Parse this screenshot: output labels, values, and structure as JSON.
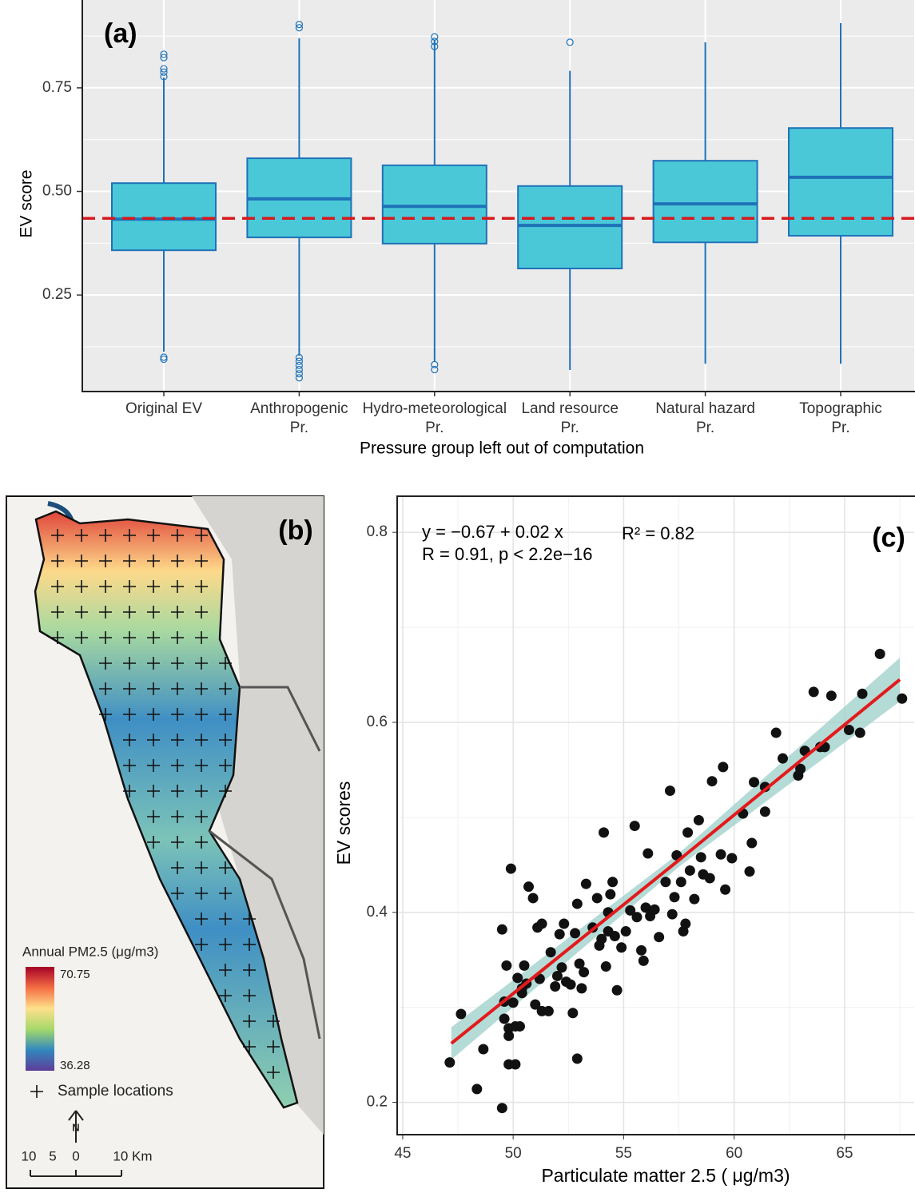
{
  "chart_data": [
    {
      "type": "box",
      "panel_label": "(a)",
      "x_label": "Pressure group left out of computation",
      "y_label": "EV score",
      "categories": [
        "Original EV",
        "Anthropogenic\nPr.",
        "Hydro-meteorological\nPr.",
        "Land resource\nPr.",
        "Natural hazard\nPr.",
        "Topographic\nPr."
      ],
      "lower": [
        0.113,
        0.103,
        0.09,
        0.069,
        0.084,
        0.084
      ],
      "q1": [
        0.358,
        0.389,
        0.374,
        0.314,
        0.377,
        0.393
      ],
      "median": [
        0.433,
        0.482,
        0.464,
        0.418,
        0.47,
        0.534
      ],
      "q3": [
        0.52,
        0.58,
        0.563,
        0.513,
        0.574,
        0.653
      ],
      "upper": [
        0.775,
        0.87,
        0.866,
        0.791,
        0.86,
        0.906
      ],
      "outliers": [
        [
          0.831,
          0.823,
          0.796,
          0.788,
          0.777,
          0.1,
          0.095
        ],
        [
          0.903,
          0.895,
          0.099,
          0.09,
          0.08,
          0.07,
          0.06,
          0.05
        ],
        [
          0.873,
          0.862,
          0.85,
          0.082,
          0.07
        ],
        [
          0.86
        ],
        [],
        []
      ],
      "color": "#4ac8d8",
      "edge_color": "#1f72b8",
      "hline": 0.435,
      "hline_color": "#d7191c",
      "ylim": [
        0.017,
        0.962
      ],
      "yticks": [
        0.25,
        {
          "value": 0.5,
          "label": "0.50"
        },
        0.75
      ],
      "minor_yticks": [
        0.125,
        0.375,
        0.625,
        0.875
      ],
      "grid": true
    },
    {
      "type": "map",
      "panel_label": "(b)",
      "legend_title": "Annual PM2.5 (μg/m3)",
      "colorbar_range": [
        36.28,
        70.75
      ],
      "colorbar_ticks": [
        70.75,
        36.28
      ],
      "marker_label": "Sample locations",
      "north_label": "N",
      "scale_labels": [
        "10",
        "5",
        "0",
        "10 Km"
      ]
    },
    {
      "type": "scatter",
      "panel_label": "(c)",
      "x_label": "Particulate matter 2.5 ( μg/m3)",
      "y_label": "EV scores",
      "equation": "y = −0.67 + 0.02 x",
      "r_squared": "R² = 0.82",
      "correlation": "R = 0.91, p < 2.2e−16",
      "x": [
        47.13,
        47.64,
        48.36,
        48.65,
        49.5,
        49.5,
        49.6,
        49.6,
        49.7,
        49.8,
        49.8,
        49.8,
        49.9,
        50.0,
        50.1,
        50.1,
        50.2,
        50.3,
        50.4,
        50.4,
        50.5,
        50.6,
        50.7,
        50.9,
        51.0,
        51.1,
        51.2,
        51.3,
        51.3,
        51.6,
        51.7,
        51.9,
        52.0,
        52.1,
        52.2,
        52.3,
        52.4,
        52.6,
        52.7,
        52.8,
        52.9,
        52.9,
        53.0,
        53.1,
        53.2,
        53.3,
        53.6,
        53.8,
        53.9,
        54.0,
        54.1,
        54.2,
        54.3,
        54.3,
        54.4,
        54.5,
        54.6,
        54.7,
        54.9,
        55.1,
        55.3,
        55.5,
        55.6,
        55.8,
        55.9,
        56.0,
        56.1,
        56.2,
        56.4,
        56.6,
        56.9,
        57.1,
        57.2,
        57.3,
        57.4,
        57.6,
        57.7,
        57.8,
        57.9,
        58.0,
        58.2,
        58.4,
        58.5,
        58.6,
        58.9,
        59.0,
        59.4,
        59.5,
        59.6,
        59.9,
        60.4,
        60.7,
        60.8,
        60.9,
        61.4,
        61.4,
        61.9,
        62.2,
        62.9,
        63.0,
        63.2,
        63.6,
        63.9,
        64.1,
        64.4,
        65.2,
        65.7,
        65.8,
        66.6,
        67.6
      ],
      "y": [
        0.242,
        0.293,
        0.214,
        0.256,
        0.194,
        0.382,
        0.306,
        0.288,
        0.344,
        0.27,
        0.24,
        0.278,
        0.446,
        0.305,
        0.28,
        0.24,
        0.331,
        0.28,
        0.32,
        0.315,
        0.344,
        0.325,
        0.427,
        0.415,
        0.303,
        0.384,
        0.33,
        0.296,
        0.388,
        0.296,
        0.358,
        0.322,
        0.333,
        0.377,
        0.342,
        0.388,
        0.327,
        0.324,
        0.294,
        0.378,
        0.246,
        0.409,
        0.346,
        0.32,
        0.337,
        0.43,
        0.384,
        0.415,
        0.365,
        0.372,
        0.484,
        0.343,
        0.4,
        0.38,
        0.419,
        0.432,
        0.375,
        0.318,
        0.363,
        0.38,
        0.402,
        0.491,
        0.395,
        0.36,
        0.349,
        0.405,
        0.462,
        0.396,
        0.403,
        0.374,
        0.432,
        0.528,
        0.398,
        0.416,
        0.46,
        0.432,
        0.38,
        0.388,
        0.484,
        0.444,
        0.414,
        0.497,
        0.458,
        0.44,
        0.436,
        0.538,
        0.461,
        0.553,
        0.424,
        0.457,
        0.504,
        0.443,
        0.473,
        0.537,
        0.532,
        0.506,
        0.589,
        0.562,
        0.544,
        0.551,
        0.57,
        0.632,
        0.574,
        0.574,
        0.628,
        0.592,
        0.589,
        0.63,
        0.672,
        0.625
      ],
      "color": "#111111",
      "fit": {
        "x": [
          47.2,
          57.5,
          67.5
        ],
        "y": [
          0.262,
          0.455,
          0.645
        ],
        "lower": [
          0.245,
          0.448,
          0.622
        ],
        "upper": [
          0.279,
          0.462,
          0.668
        ],
        "color": "#e31a1c",
        "band_color": "#9ccfc9"
      },
      "xlim": [
        44.75,
        68.15
      ],
      "xticks": [
        45,
        50,
        55,
        60,
        65
      ],
      "minor_xticks": [
        47.5,
        52.5,
        57.5,
        62.5,
        67.5
      ],
      "ylim": [
        0.166,
        0.838
      ],
      "yticks": [
        0.2,
        0.4,
        0.6,
        0.8
      ],
      "minor_yticks": [
        0.3,
        0.5,
        0.7
      ],
      "grid": true
    }
  ]
}
